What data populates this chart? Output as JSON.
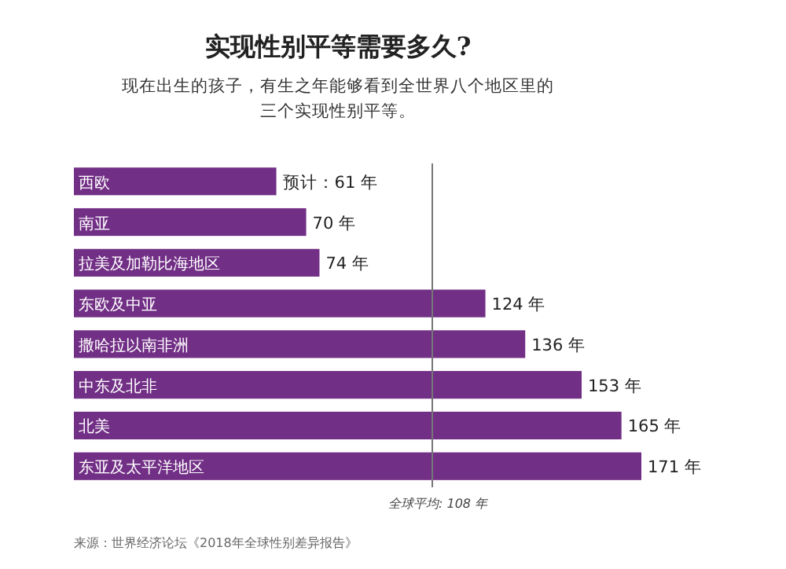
{
  "chart_data": {
    "type": "bar",
    "orientation": "horizontal",
    "title": "实现性别平等需要多久?",
    "subtitle": "现在出生的孩子，有生之年能够看到全世界八个地区里的三个实现性别平等。",
    "categories": [
      "西欧",
      "南亚",
      "拉美及加勒比海地区",
      "东欧及中亚",
      "撒哈拉以南非洲",
      "中东及北非",
      "北美",
      "东亚及太平洋地区"
    ],
    "values": [
      61,
      70,
      74,
      124,
      136,
      153,
      165,
      171
    ],
    "value_labels": [
      "预计：61 年",
      "70 年",
      "74 年",
      "124 年",
      "136 年",
      "153 年",
      "165 年",
      "171 年"
    ],
    "color": "#722f86",
    "ref_lines": [
      {
        "axis": "x",
        "value": 108,
        "label": "全球平均: 108 年",
        "color": "#777777"
      }
    ],
    "annotations": [
      "来源：世界经济论坛《2018年全球性别差异报告》"
    ]
  }
}
